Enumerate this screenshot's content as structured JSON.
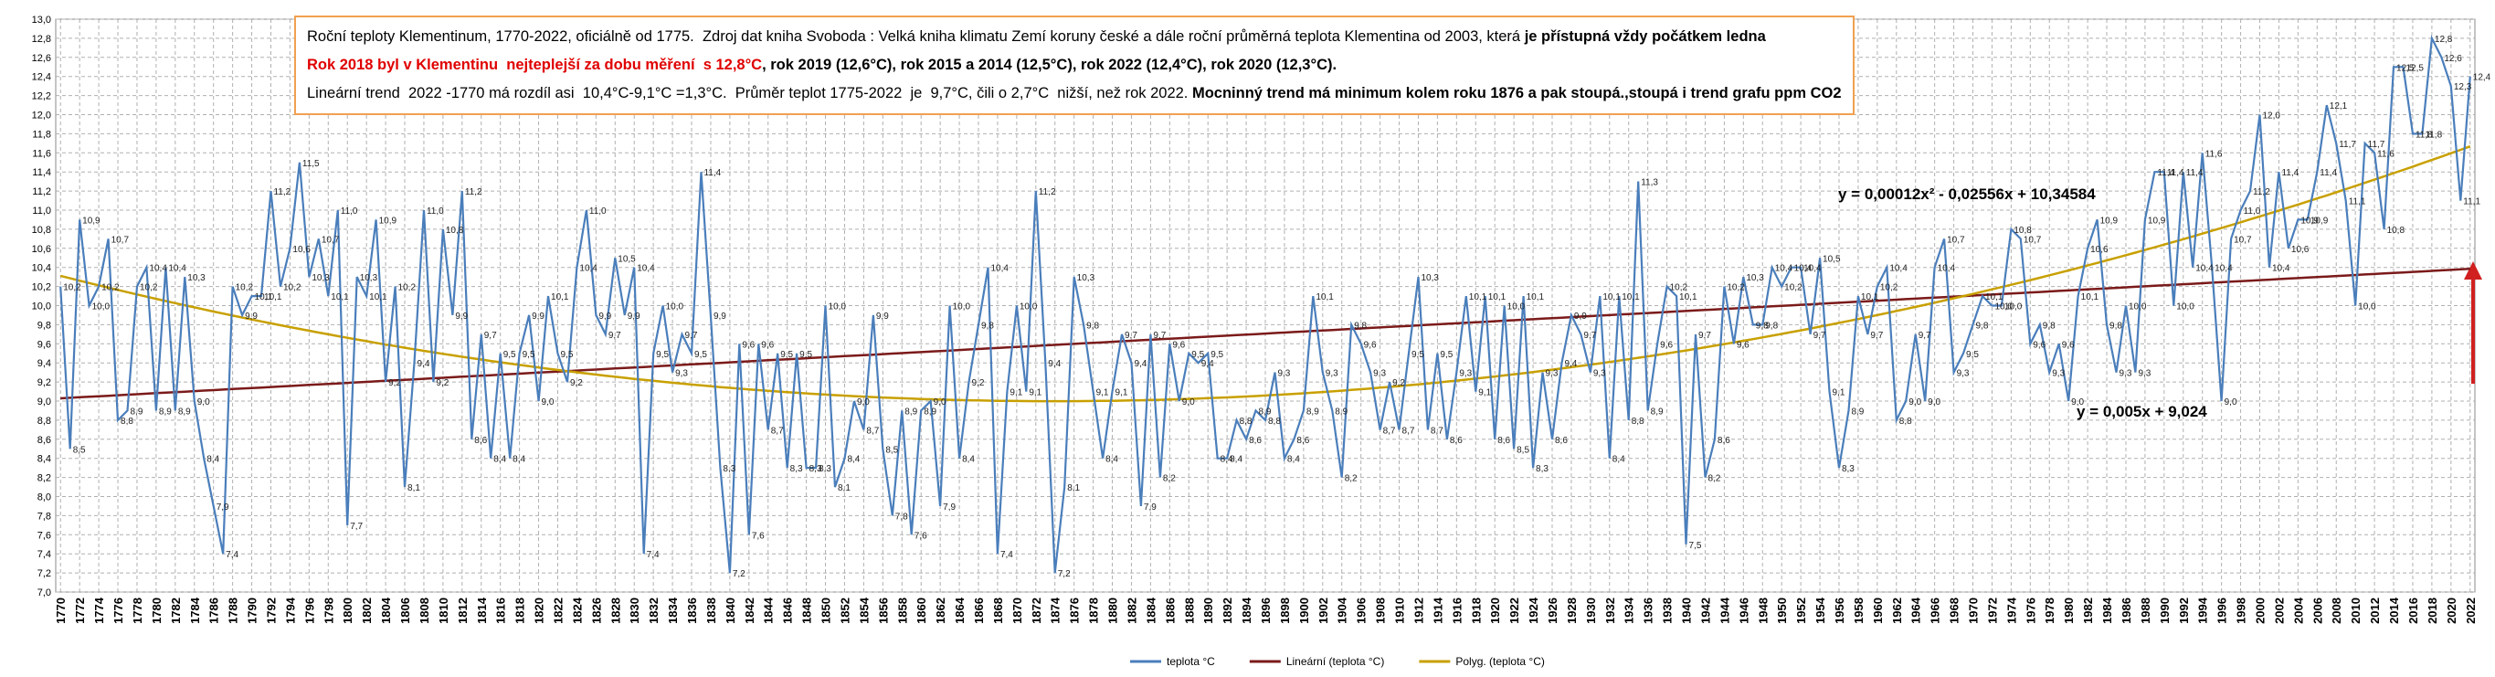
{
  "chart_data": {
    "type": "line",
    "text_box": {
      "lines": [
        [
          {
            "text": "Roční teploty Klementinum, 1770-2022, oficiálně od 1775.  Zdroj dat kniha Svoboda : Velká kniha klimatu Zemí koruny české a dále roční průměrná teplota Klementina od 2003, která ",
            "bold": false,
            "color": "#000000"
          },
          {
            "text": "je přístupná vždy počátkem ledna",
            "bold": true,
            "color": "#000000"
          }
        ],
        [
          {
            "text": "Rok 2018 byl v Klementinu  nejteplejší za dobu měření  s 12,8°C",
            "bold": true,
            "color": "#e00000"
          },
          {
            "text": ", rok 2019 (12,6°C), rok 2015 a 2014 (12,5°C), rok 2022 (12,4°C), rok 2020 (12,3°C).",
            "bold": true,
            "color": "#000000"
          }
        ],
        [
          {
            "text": "Lineární trend  2022 -1770 má rozdíl asi  10,4°C-9,1°C =1,3°C.  Průměr teplot 1775-2022  je  9,7°C, čili o 2,7°C  nižší, než rok 2022. ",
            "bold": false,
            "color": "#000000"
          },
          {
            "text": "Mocninný trend má minimum kolem roku 1876 a pak stoupá.,stoupá i trend grafu ppm CO2",
            "bold": true,
            "color": "#000000"
          }
        ]
      ]
    },
    "annotations": [
      "y = 0,00012x² - 0,02556x + 10,34584",
      "y = 0,005x + 9,024"
    ],
    "x": [
      1770,
      1771,
      1772,
      1773,
      1774,
      1775,
      1776,
      1777,
      1778,
      1779,
      1780,
      1781,
      1782,
      1783,
      1784,
      1785,
      1786,
      1787,
      1788,
      1789,
      1790,
      1791,
      1792,
      1793,
      1794,
      1795,
      1796,
      1797,
      1798,
      1799,
      1800,
      1801,
      1802,
      1803,
      1804,
      1805,
      1806,
      1807,
      1808,
      1809,
      1810,
      1811,
      1812,
      1813,
      1814,
      1815,
      1816,
      1817,
      1818,
      1819,
      1820,
      1821,
      1822,
      1823,
      1824,
      1825,
      1826,
      1827,
      1828,
      1829,
      1830,
      1831,
      1832,
      1833,
      1834,
      1835,
      1836,
      1837,
      1838,
      1839,
      1840,
      1841,
      1842,
      1843,
      1844,
      1845,
      1846,
      1847,
      1848,
      1849,
      1850,
      1851,
      1852,
      1853,
      1854,
      1855,
      1856,
      1857,
      1858,
      1859,
      1860,
      1861,
      1862,
      1863,
      1864,
      1865,
      1866,
      1867,
      1868,
      1869,
      1870,
      1871,
      1872,
      1873,
      1874,
      1875,
      1876,
      1877,
      1878,
      1879,
      1880,
      1881,
      1882,
      1883,
      1884,
      1885,
      1886,
      1887,
      1888,
      1889,
      1890,
      1891,
      1892,
      1893,
      1894,
      1895,
      1896,
      1897,
      1898,
      1899,
      1900,
      1901,
      1902,
      1903,
      1904,
      1905,
      1906,
      1907,
      1908,
      1909,
      1910,
      1911,
      1912,
      1913,
      1914,
      1915,
      1916,
      1917,
      1918,
      1919,
      1920,
      1921,
      1922,
      1923,
      1924,
      1925,
      1926,
      1927,
      1928,
      1929,
      1930,
      1931,
      1932,
      1933,
      1934,
      1935,
      1936,
      1937,
      1938,
      1939,
      1940,
      1941,
      1942,
      1943,
      1944,
      1945,
      1946,
      1947,
      1948,
      1949,
      1950,
      1951,
      1952,
      1953,
      1954,
      1955,
      1956,
      1957,
      1958,
      1959,
      1960,
      1961,
      1962,
      1963,
      1964,
      1965,
      1966,
      1967,
      1968,
      1969,
      1970,
      1971,
      1972,
      1973,
      1974,
      1975,
      1976,
      1977,
      1978,
      1979,
      1980,
      1981,
      1982,
      1983,
      1984,
      1985,
      1986,
      1987,
      1988,
      1989,
      1990,
      1991,
      1992,
      1993,
      1994,
      1995,
      1996,
      1997,
      1998,
      1999,
      2000,
      2001,
      2002,
      2003,
      2004,
      2005,
      2006,
      2007,
      2008,
      2009,
      2010,
      2011,
      2012,
      2013,
      2014,
      2015,
      2016,
      2017,
      2018,
      2019,
      2020,
      2021,
      2022
    ],
    "series": [
      {
        "name": "teplota °C",
        "color": "#4a7ebb",
        "values": [
          10.2,
          8.5,
          10.9,
          10.0,
          10.2,
          10.7,
          8.8,
          8.9,
          10.2,
          10.4,
          8.9,
          10.4,
          8.9,
          10.3,
          9.0,
          8.4,
          7.9,
          7.4,
          10.2,
          9.9,
          10.1,
          10.1,
          11.2,
          10.2,
          10.6,
          11.5,
          10.3,
          10.7,
          10.1,
          11.0,
          7.7,
          10.3,
          10.1,
          10.9,
          9.2,
          10.2,
          8.1,
          9.4,
          11.0,
          9.2,
          10.8,
          9.9,
          11.2,
          8.6,
          9.7,
          8.4,
          9.5,
          8.4,
          9.5,
          9.9,
          9.0,
          10.1,
          9.5,
          9.2,
          10.4,
          11.0,
          9.9,
          9.7,
          10.5,
          9.9,
          10.4,
          7.4,
          9.5,
          10.0,
          9.3,
          9.7,
          9.5,
          11.4,
          9.9,
          8.3,
          7.2,
          9.6,
          7.6,
          9.6,
          8.7,
          9.5,
          8.3,
          9.5,
          8.3,
          8.3,
          10.0,
          8.1,
          8.4,
          9.0,
          8.7,
          9.9,
          8.5,
          7.8,
          8.9,
          7.6,
          8.9,
          9.0,
          7.9,
          10.0,
          8.4,
          9.2,
          9.8,
          10.4,
          7.4,
          9.1,
          10.0,
          9.1,
          11.2,
          9.4,
          7.2,
          8.1,
          10.3,
          9.8,
          9.1,
          8.4,
          9.1,
          9.7,
          9.4,
          7.9,
          9.7,
          8.2,
          9.6,
          9.0,
          9.5,
          9.4,
          9.5,
          8.4,
          8.4,
          8.8,
          8.6,
          8.9,
          8.8,
          9.3,
          8.4,
          8.6,
          8.9,
          10.1,
          9.3,
          8.9,
          8.2,
          9.8,
          9.6,
          9.3,
          8.7,
          9.2,
          8.7,
          9.5,
          10.3,
          8.7,
          9.5,
          8.6,
          9.3,
          10.1,
          9.1,
          10.1,
          8.6,
          10.0,
          8.5,
          10.1,
          8.3,
          9.3,
          8.6,
          9.4,
          9.9,
          9.7,
          9.3,
          10.1,
          8.4,
          10.1,
          8.8,
          11.3,
          8.9,
          9.6,
          10.2,
          10.1,
          7.5,
          9.7,
          8.2,
          8.6,
          10.2,
          9.6,
          10.3,
          9.8,
          9.8,
          10.4,
          10.2,
          10.4,
          10.4,
          9.7,
          10.5,
          9.1,
          8.3,
          8.9,
          10.1,
          9.7,
          10.2,
          10.4,
          8.8,
          9.0,
          9.7,
          9.0,
          10.4,
          10.7,
          9.3,
          9.5,
          9.8,
          10.1,
          10.0,
          10.0,
          10.8,
          10.7,
          9.6,
          9.8,
          9.3,
          9.6,
          9.0,
          10.1,
          10.6,
          10.9,
          9.8,
          9.3,
          10.0,
          9.3,
          10.9,
          11.4,
          11.4,
          10.0,
          11.4,
          10.4,
          11.6,
          10.4,
          9.0,
          10.7,
          11.0,
          11.2,
          12.0,
          10.4,
          11.4,
          10.6,
          10.9,
          10.9,
          11.4,
          12.1,
          11.7,
          11.1,
          10.0,
          11.7,
          11.6,
          10.8,
          12.5,
          12.5,
          11.8,
          11.8,
          12.8,
          12.6,
          12.3,
          11.1,
          12.4
        ],
        "value_labels": [
          "10,2",
          "8,5",
          "10,9",
          "10,0",
          "10,2",
          "10,7",
          "8,8",
          "8,9",
          "10,2",
          "10,4",
          "8,9",
          "10,4",
          "8,9",
          "10,3",
          "9,0",
          "8,4",
          "7,9",
          "7,4",
          "10,2",
          "9,9",
          "10,1",
          "10,1",
          "11,2",
          "10,2",
          "10,6",
          "11,5",
          "10,3",
          "10,7",
          "10,1",
          "11,0",
          "7,7",
          "10,3",
          "10,1",
          "10,9",
          "9,2",
          "10,2",
          "8,1",
          "9,4",
          "11,0",
          "9,2",
          "10,8",
          "9,9",
          "11,2",
          "8,6",
          "9,7",
          "8,4",
          "9,5",
          "8,4",
          "9,5",
          "9,9",
          "9,0",
          "10,1",
          "9,5",
          "9,2",
          "10,4",
          "11,0",
          "9,9",
          "9,7",
          "10,5",
          "9,9",
          "10,4",
          "7,4",
          "9,5",
          "10,0",
          "9,3",
          "9,7",
          "9,5",
          "11,4",
          "9,9",
          "8,3",
          "7,2",
          "9,6",
          "7,6",
          "9,6",
          "8,7",
          "9,5",
          "8,3",
          "9,5",
          "8,3",
          "8,3",
          "10,0",
          "8,1",
          "8,4",
          "9,0",
          "8,7",
          "9,9",
          "8,5",
          "7,8",
          "8,9",
          "7,6",
          "8,9",
          "9,0",
          "7,9",
          "10,0",
          "8,4",
          "9,2",
          "9,8",
          "10,4",
          "7,4",
          "9,1",
          "10,0",
          "9,1",
          "11,2",
          "9,4",
          "7,2",
          "8,1",
          "10,3",
          "9,8",
          "9,1",
          "8,4",
          "9,1",
          "9,7",
          "9,4",
          "7,9",
          "9,7",
          "8,2",
          "9,6",
          "9,0",
          "9,5",
          "9,4",
          "9,5",
          "8,4",
          "8,4",
          "8,8",
          "8,6",
          "8,9",
          "8,8",
          "9,3",
          "8,4",
          "8,6",
          "8,9",
          "10,1",
          "9,3",
          "8,9",
          "8,2",
          "9,8",
          "9,6",
          "9,3",
          "8,7",
          "9,2",
          "8,7",
          "9,5",
          "10,3",
          "8,7",
          "9,5",
          "8,6",
          "9,3",
          "10,1",
          "9,1",
          "10,1",
          "8,6",
          "10,0",
          "8,5",
          "10,1",
          "8,3",
          "9,3",
          "8,6",
          "9,4",
          "9,9",
          "9,7",
          "9,3",
          "10,1",
          "8,4",
          "10,1",
          "8,8",
          "11,3",
          "8,9",
          "9,6",
          "10,2",
          "10,1",
          "7,5",
          "9,7",
          "8,2",
          "8,6",
          "10,2",
          "9,6",
          "10,3",
          "9,8",
          "9,8",
          "10,4",
          "10,2",
          "10,4",
          "10,4",
          "9,7",
          "10,5",
          "9,1",
          "8,3",
          "8,9",
          "10,1",
          "9,7",
          "10,2",
          "10,4",
          "8,8",
          "9,0",
          "9,7",
          "9,0",
          "10,4",
          "10,7",
          "9,3",
          "9,5",
          "9,8",
          "10,1",
          "10,0",
          "10,0",
          "10,8",
          "10,7",
          "9,6",
          "9,8",
          "9,3",
          "9,6",
          "9,0",
          "10,1",
          "10,6",
          "10,9",
          "9,8",
          "9,3",
          "10,0",
          "9,3",
          "10,9",
          "11,4",
          "11,4",
          "10,0",
          "11,4",
          "10,4",
          "11,6",
          "10,4",
          "9,0",
          "10,7",
          "11,0",
          "11,2",
          "12,0",
          "10,4",
          "11,4",
          "10,6",
          "10,9",
          "10,9",
          "11,4",
          "12,1",
          "11,7",
          "11,1",
          "10,0",
          "11,7",
          "11,6",
          "10,8",
          "12,5",
          "12,5",
          "11,8",
          "11,8",
          "12,8",
          "12,6",
          "12,3",
          "11,1",
          "12,4"
        ]
      }
    ],
    "trendlines": [
      {
        "name": "Lineární (teplota °C)",
        "color": "#7b1a1a",
        "order": 1
      },
      {
        "name": "Polyg. (teplota °C)",
        "color": "#c8a000",
        "order": 2
      }
    ],
    "xlim": [
      1769.5,
      2022.5
    ],
    "xticks": [
      1770,
      1772,
      1774,
      1776,
      1778,
      1780,
      1782,
      1784,
      1786,
      1788,
      1790,
      1792,
      1794,
      1796,
      1798,
      1800,
      1802,
      1804,
      1806,
      1808,
      1810,
      1812,
      1814,
      1816,
      1818,
      1820,
      1822,
      1824,
      1826,
      1828,
      1830,
      1832,
      1834,
      1836,
      1838,
      1840,
      1842,
      1844,
      1846,
      1848,
      1850,
      1852,
      1854,
      1856,
      1858,
      1860,
      1862,
      1864,
      1866,
      1868,
      1870,
      1872,
      1874,
      1876,
      1878,
      1880,
      1882,
      1884,
      1886,
      1888,
      1890,
      1892,
      1894,
      1896,
      1898,
      1900,
      1902,
      1904,
      1906,
      1908,
      1910,
      1912,
      1914,
      1916,
      1918,
      1920,
      1922,
      1924,
      1926,
      1928,
      1930,
      1932,
      1934,
      1936,
      1938,
      1940,
      1942,
      1944,
      1946,
      1948,
      1950,
      1952,
      1954,
      1956,
      1958,
      1960,
      1962,
      1964,
      1966,
      1968,
      1970,
      1972,
      1974,
      1976,
      1978,
      1980,
      1982,
      1984,
      1986,
      1988,
      1990,
      1992,
      1994,
      1996,
      1998,
      2000,
      2002,
      2004,
      2006,
      2008,
      2010,
      2012,
      2014,
      2016,
      2018,
      2020,
      2022
    ],
    "ylim": [
      7,
      13
    ],
    "yticks": [
      {
        "value": 7,
        "label": "7,0"
      },
      {
        "value": 7.2,
        "label": "7,2"
      },
      {
        "value": 7.4,
        "label": "7,4"
      },
      {
        "value": 7.6,
        "label": "7,6"
      },
      {
        "value": 7.8,
        "label": "7,8"
      },
      {
        "value": 8,
        "label": "8,0"
      },
      {
        "value": 8.2,
        "label": "8,2"
      },
      {
        "value": 8.4,
        "label": "8,4"
      },
      {
        "value": 8.6,
        "label": "8,6"
      },
      {
        "value": 8.8,
        "label": "8,8"
      },
      {
        "value": 9,
        "label": "9,0"
      },
      {
        "value": 9.2,
        "label": "9,2"
      },
      {
        "value": 9.4,
        "label": "9,4"
      },
      {
        "value": 9.6,
        "label": "9,6"
      },
      {
        "value": 9.8,
        "label": "9,8"
      },
      {
        "value": 10,
        "label": "10,0"
      },
      {
        "value": 10.2,
        "label": "10,2"
      },
      {
        "value": 10.4,
        "label": "10,4"
      },
      {
        "value": 10.6,
        "label": "10,6"
      },
      {
        "value": 10.8,
        "label": "10,8"
      },
      {
        "value": 11,
        "label": "11,0"
      },
      {
        "value": 11.2,
        "label": "11,2"
      },
      {
        "value": 11.4,
        "label": "11,4"
      },
      {
        "value": 11.6,
        "label": "11,6"
      },
      {
        "value": 11.8,
        "label": "11,8"
      },
      {
        "value": 12,
        "label": "12,0"
      },
      {
        "value": 12.2,
        "label": "12,2"
      },
      {
        "value": 12.4,
        "label": "12,4"
      },
      {
        "value": 12.6,
        "label": "12,6"
      },
      {
        "value": 12.8,
        "label": "12,8"
      },
      {
        "value": 13,
        "label": "13,0"
      }
    ],
    "grid": true,
    "legend": "bottom"
  }
}
